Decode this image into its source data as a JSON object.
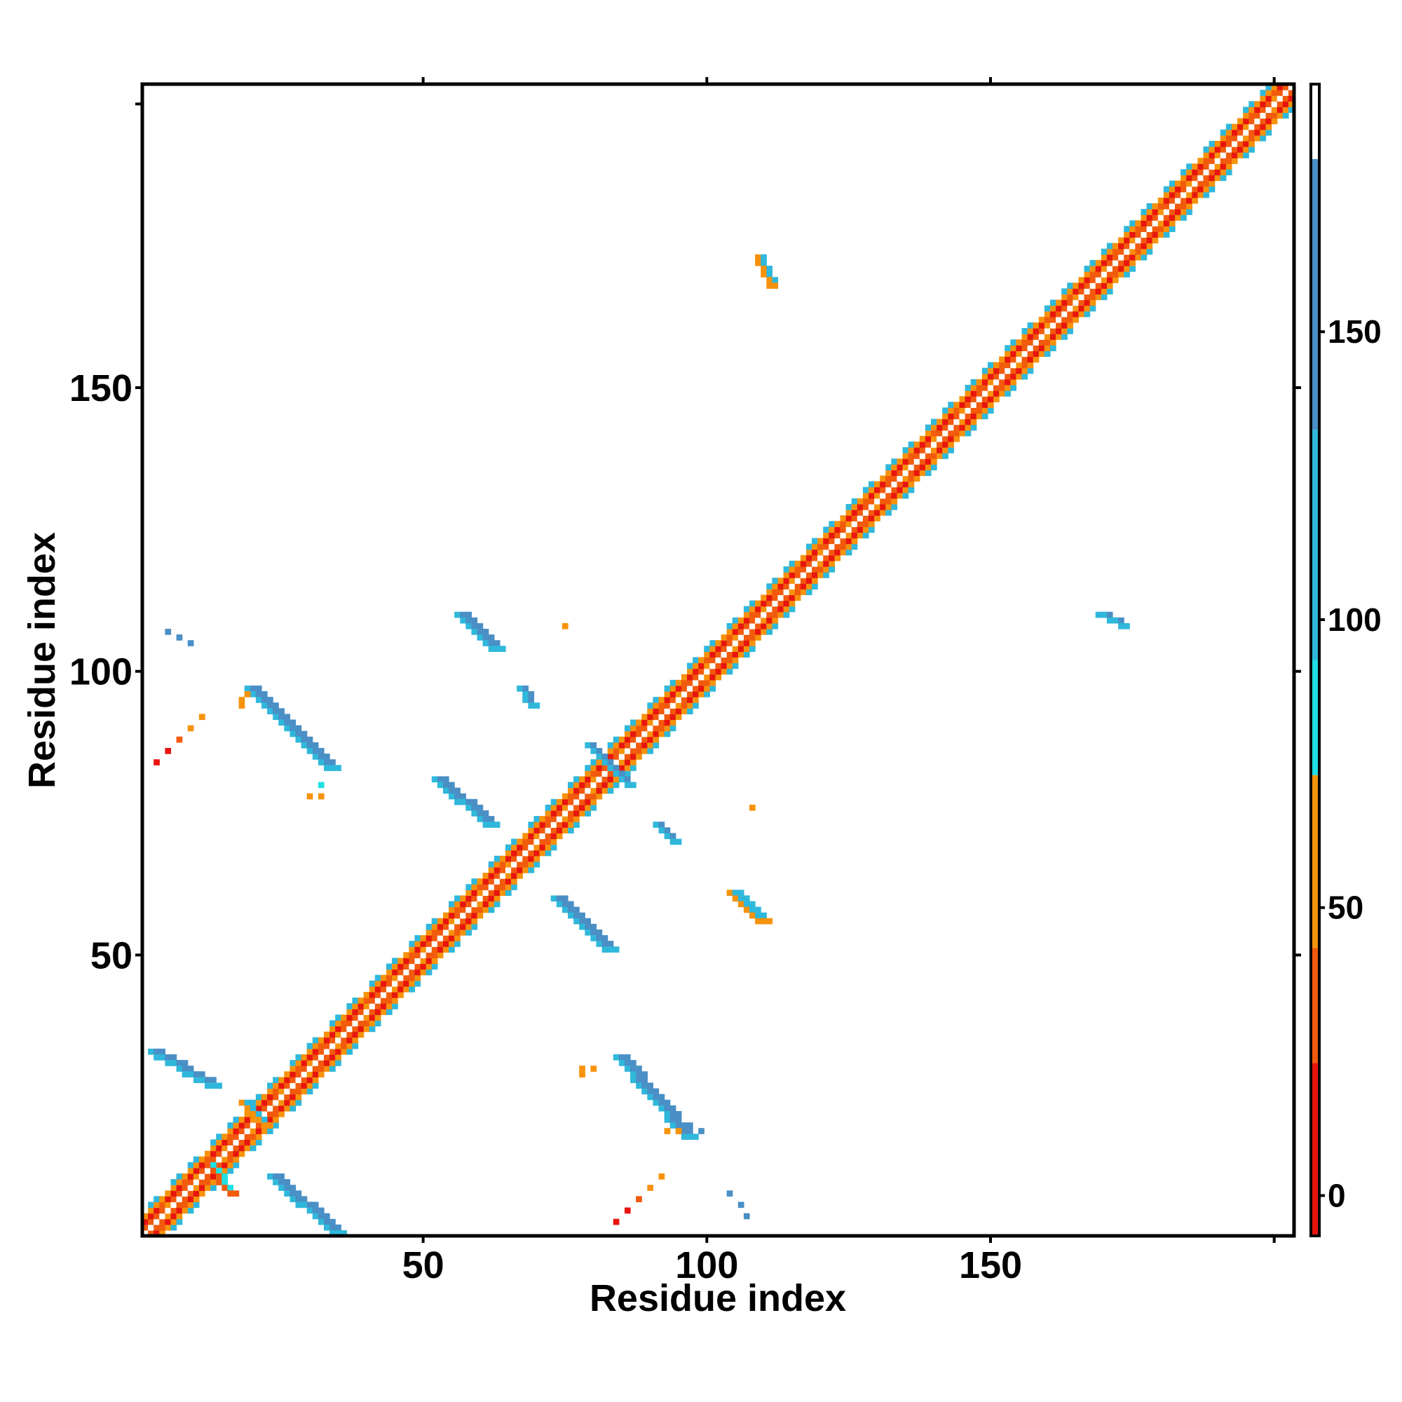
{
  "chart_data": {
    "type": "heatmap",
    "title": "",
    "xlabel": "Residue index",
    "ylabel": "Residue index",
    "xlim": [
      0.5,
      203.5
    ],
    "ylim": [
      0.5,
      203.5
    ],
    "x_ticks": [
      50,
      100,
      150
    ],
    "y_ticks": [
      50,
      100,
      150
    ],
    "grid": false,
    "colorbar": {
      "ticks": [
        0,
        50,
        100,
        150
      ],
      "range": [
        -7,
        193
      ],
      "bands": [
        {
          "from": -7,
          "to": 23,
          "color": "#e8150f"
        },
        {
          "from": 23,
          "to": 43,
          "color": "#f25a0c"
        },
        {
          "from": 43,
          "to": 73,
          "color": "#f7920b"
        },
        {
          "from": 73,
          "to": 93,
          "color": "#20dfe4"
        },
        {
          "from": 93,
          "to": 133,
          "color": "#2fb8db"
        },
        {
          "from": 133,
          "to": 180,
          "color": "#4a8fc5"
        },
        {
          "from": 180,
          "to": 193,
          "color": "#ffffff"
        }
      ]
    },
    "diagonal": {
      "from": 1,
      "to": 203
    },
    "blocks": [
      {
        "x": [
          2,
          12
        ],
        "y": [
          27,
          33
        ],
        "dir": "anti",
        "value": 160,
        "width": 3
      },
      {
        "x": [
          23,
          34
        ],
        "y": [
          1,
          11
        ],
        "dir": "anti",
        "value": 160,
        "width": 3
      },
      {
        "x": [
          19,
          33
        ],
        "y": [
          83,
          97
        ],
        "dir": "anti",
        "value": 160,
        "width": 3
      },
      {
        "x": [
          56,
          62
        ],
        "y": [
          104,
          110
        ],
        "dir": "anti",
        "value": 150,
        "width": 3
      },
      {
        "x": [
          52,
          61
        ],
        "y": [
          73,
          81
        ],
        "dir": "anti",
        "value": 160,
        "width": 3
      },
      {
        "x": [
          73,
          82
        ],
        "y": [
          51,
          60
        ],
        "dir": "anti",
        "value": 160,
        "width": 3
      },
      {
        "x": [
          84,
          96
        ],
        "y": [
          18,
          32
        ],
        "dir": "anti",
        "value": 160,
        "width": 3
      },
      {
        "x": [
          104,
          109
        ],
        "y": [
          56,
          61
        ],
        "dir": "anti",
        "value": 110,
        "width": 3
      },
      {
        "x": [
          109,
          111
        ],
        "y": [
          168,
          173
        ],
        "dir": "anti",
        "value": 110,
        "width": 2
      },
      {
        "x": [
          169,
          173
        ],
        "y": [
          108,
          110
        ],
        "dir": "anti",
        "value": 150,
        "width": 2
      },
      {
        "x": [
          67,
          69
        ],
        "y": [
          94,
          97
        ],
        "dir": "anti",
        "value": 150,
        "width": 2
      },
      {
        "x": [
          91,
          94
        ],
        "y": [
          70,
          73
        ],
        "dir": "anti",
        "value": 150,
        "width": 2
      },
      {
        "x": [
          79,
          86
        ],
        "y": [
          80,
          87
        ],
        "dir": "anti",
        "value": 160,
        "width": 2
      },
      {
        "x": [
          18,
          22
        ],
        "y": [
          20,
          24
        ],
        "dir": "anti",
        "value": 110,
        "width": 2
      },
      {
        "x": [
          12,
          16
        ],
        "y": [
          8,
          13
        ],
        "dir": "anti",
        "value": 90,
        "width": 2
      }
    ],
    "dots": [
      {
        "x": 5,
        "y": 107,
        "value": 160
      },
      {
        "x": 7,
        "y": 106,
        "value": 160
      },
      {
        "x": 9,
        "y": 105,
        "value": 160
      },
      {
        "x": 3,
        "y": 84,
        "value": 10
      },
      {
        "x": 5,
        "y": 86,
        "value": 10
      },
      {
        "x": 7,
        "y": 88,
        "value": 30
      },
      {
        "x": 9,
        "y": 90,
        "value": 50
      },
      {
        "x": 11,
        "y": 92,
        "value": 50
      },
      {
        "x": 18,
        "y": 94,
        "value": 50
      },
      {
        "x": 18,
        "y": 95,
        "value": 50
      },
      {
        "x": 19,
        "y": 96,
        "value": 50
      },
      {
        "x": 30,
        "y": 78,
        "value": 50
      },
      {
        "x": 32,
        "y": 78,
        "value": 50
      },
      {
        "x": 32,
        "y": 80,
        "value": 90
      },
      {
        "x": 75,
        "y": 108,
        "value": 50
      },
      {
        "x": 108,
        "y": 76,
        "value": 50
      },
      {
        "x": 78,
        "y": 29,
        "value": 50
      },
      {
        "x": 80,
        "y": 30,
        "value": 50
      },
      {
        "x": 78,
        "y": 30,
        "value": 50
      },
      {
        "x": 84,
        "y": 3,
        "value": 10
      },
      {
        "x": 86,
        "y": 5,
        "value": 10
      },
      {
        "x": 88,
        "y": 7,
        "value": 30
      },
      {
        "x": 90,
        "y": 9,
        "value": 50
      },
      {
        "x": 92,
        "y": 11,
        "value": 50
      },
      {
        "x": 93,
        "y": 19,
        "value": 50
      },
      {
        "x": 95,
        "y": 19,
        "value": 50
      },
      {
        "x": 97,
        "y": 20,
        "value": 160
      },
      {
        "x": 99,
        "y": 19,
        "value": 160
      },
      {
        "x": 104,
        "y": 8,
        "value": 160
      },
      {
        "x": 106,
        "y": 6,
        "value": 160
      },
      {
        "x": 107,
        "y": 4,
        "value": 160
      }
    ]
  }
}
